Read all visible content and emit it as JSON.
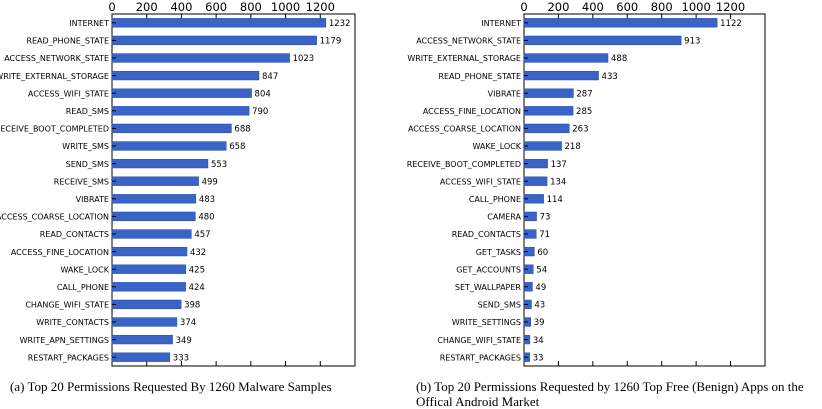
{
  "chart_data": [
    {
      "type": "bar",
      "orientation": "horizontal",
      "caption": "(a) Top 20 Permissions Requested By 1260 Malware Samples",
      "categories": [
        "INTERNET",
        "READ_PHONE_STATE",
        "ACCESS_NETWORK_STATE",
        "WRITE_EXTERNAL_STORAGE",
        "ACCESS_WIFI_STATE",
        "READ_SMS",
        "RECEIVE_BOOT_COMPLETED",
        "WRITE_SMS",
        "SEND_SMS",
        "RECEIVE_SMS",
        "VIBRATE",
        "ACCESS_COARSE_LOCATION",
        "READ_CONTACTS",
        "ACCESS_FINE_LOCATION",
        "WAKE_LOCK",
        "CALL_PHONE",
        "CHANGE_WIFI_STATE",
        "WRITE_CONTACTS",
        "WRITE_APN_SETTINGS",
        "RESTART_PACKAGES"
      ],
      "values": [
        1232,
        1179,
        1023,
        847,
        804,
        790,
        688,
        658,
        553,
        499,
        483,
        480,
        457,
        432,
        425,
        424,
        398,
        374,
        349,
        333
      ],
      "xlim": [
        0,
        1400
      ],
      "xticks": [
        0,
        200,
        400,
        600,
        800,
        1000,
        1200
      ],
      "axis_position": "top",
      "grid": false,
      "bar_color": "#3a63c8"
    },
    {
      "type": "bar",
      "orientation": "horizontal",
      "caption": "(b) Top 20 Permissions Requested by 1260 Top Free (Benign) Apps on the Offical Android Market",
      "categories": [
        "INTERNET",
        "ACCESS_NETWORK_STATE",
        "WRITE_EXTERNAL_STORAGE",
        "READ_PHONE_STATE",
        "VIBRATE",
        "ACCESS_FINE_LOCATION",
        "ACCESS_COARSE_LOCATION",
        "WAKE_LOCK",
        "RECEIVE_BOOT_COMPLETED",
        "ACCESS_WIFI_STATE",
        "CALL_PHONE",
        "CAMERA",
        "READ_CONTACTS",
        "GET_TASKS",
        "GET_ACCOUNTS",
        "SET_WALLPAPER",
        "SEND_SMS",
        "WRITE_SETTINGS",
        "CHANGE_WIFI_STATE",
        "RESTART_PACKAGES"
      ],
      "values": [
        1122,
        913,
        488,
        433,
        287,
        285,
        263,
        218,
        137,
        134,
        114,
        73,
        71,
        60,
        54,
        49,
        43,
        39,
        34,
        33
      ],
      "xlim": [
        0,
        1400
      ],
      "xticks": [
        0,
        200,
        400,
        600,
        800,
        1000,
        1200
      ],
      "axis_position": "top",
      "grid": false,
      "bar_color": "#3a63c8"
    }
  ]
}
